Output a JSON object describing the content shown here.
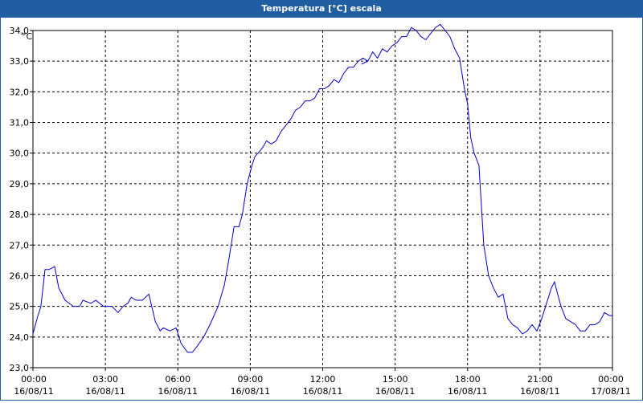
{
  "window": {
    "title": "Temperatura [°C] escala"
  },
  "chart_data": {
    "type": "line",
    "title": "Temperatura [°C] escala",
    "ylabel": "°C",
    "xlabel": "",
    "ylim": [
      23.0,
      34.0
    ],
    "xlim": [
      0,
      24
    ],
    "grid": true,
    "line_color": "#0000c8",
    "y_ticks": [
      "23,0",
      "24,0",
      "25,0",
      "26,0",
      "27,0",
      "28,0",
      "29,0",
      "30,0",
      "31,0",
      "32,0",
      "33,0",
      "34,0"
    ],
    "x_ticks": [
      {
        "time": "00:00",
        "date": "16/08/11"
      },
      {
        "time": "03:00",
        "date": "16/08/11"
      },
      {
        "time": "06:00",
        "date": "16/08/11"
      },
      {
        "time": "09:00",
        "date": "16/08/11"
      },
      {
        "time": "12:00",
        "date": "16/08/11"
      },
      {
        "time": "15:00",
        "date": "16/08/11"
      },
      {
        "time": "18:00",
        "date": "16/08/11"
      },
      {
        "time": "21:00",
        "date": "16/08/11"
      },
      {
        "time": "00:00",
        "date": "17/08/11"
      }
    ],
    "series": [
      {
        "segments": [
          [
            [
              0.0,
              24.1
            ],
            [
              0.17,
              24.6
            ],
            [
              0.33,
              25.0
            ],
            [
              0.5,
              26.2
            ],
            [
              0.67,
              26.2
            ],
            [
              0.9,
              26.3
            ],
            [
              1.07,
              25.6
            ],
            [
              1.33,
              25.2
            ],
            [
              1.67,
              25.0
            ],
            [
              1.93,
              25.0
            ],
            [
              2.07,
              25.2
            ],
            [
              2.4,
              25.1
            ],
            [
              2.6,
              25.2
            ],
            [
              2.93,
              25.0
            ],
            [
              3.07,
              25.0
            ],
            [
              3.27,
              25.0
            ],
            [
              3.53,
              24.8
            ],
            [
              3.73,
              25.0
            ],
            [
              3.93,
              25.1
            ],
            [
              4.07,
              25.3
            ],
            [
              4.27,
              25.2
            ],
            [
              4.53,
              25.2
            ],
            [
              4.8,
              25.4
            ],
            [
              5.07,
              24.5
            ],
            [
              5.27,
              24.2
            ],
            [
              5.4,
              24.3
            ],
            [
              5.67,
              24.2
            ],
            [
              5.93,
              24.3
            ],
            [
              6.13,
              23.8
            ],
            [
              6.4,
              23.5
            ],
            [
              6.6,
              23.5
            ],
            [
              6.8,
              23.7
            ],
            [
              7.07,
              24.0
            ],
            [
              7.33,
              24.4
            ],
            [
              7.67,
              25.0
            ],
            [
              7.93,
              25.7
            ],
            [
              8.13,
              26.6
            ],
            [
              8.33,
              27.6
            ],
            [
              8.53,
              27.6
            ],
            [
              8.67,
              28.0
            ],
            [
              8.87,
              29.0
            ],
            [
              9.07,
              29.6
            ],
            [
              9.2,
              29.9
            ],
            [
              9.33,
              30.0
            ],
            [
              9.53,
              30.2
            ],
            [
              9.67,
              30.4
            ],
            [
              9.87,
              30.3
            ],
            [
              10.07,
              30.4
            ],
            [
              10.27,
              30.7
            ],
            [
              10.47,
              30.9
            ],
            [
              10.67,
              31.1
            ],
            [
              10.87,
              31.4
            ],
            [
              11.07,
              31.5
            ],
            [
              11.27,
              31.7
            ],
            [
              11.47,
              31.7
            ],
            [
              11.67,
              31.8
            ],
            [
              11.87,
              32.1
            ],
            [
              12.07,
              32.1
            ],
            [
              12.27,
              32.2
            ],
            [
              12.47,
              32.4
            ],
            [
              12.67,
              32.3
            ],
            [
              12.87,
              32.6
            ],
            [
              13.07,
              32.8
            ],
            [
              13.27,
              32.8
            ],
            [
              13.47,
              33.0
            ],
            [
              13.67,
              33.1
            ],
            [
              13.87,
              33.0
            ]
          ],
          [
            [
              13.6,
              32.9
            ],
            [
              13.87,
              33.0
            ],
            [
              14.07,
              33.3
            ],
            [
              14.27,
              33.1
            ],
            [
              14.47,
              33.4
            ],
            [
              14.67,
              33.3
            ],
            [
              14.87,
              33.5
            ],
            [
              15.07,
              33.6
            ],
            [
              15.27,
              33.8
            ],
            [
              15.47,
              33.8
            ],
            [
              15.67,
              34.1
            ],
            [
              15.87,
              34.0
            ],
            [
              16.07,
              33.8
            ],
            [
              16.27,
              33.7
            ],
            [
              16.47,
              33.9
            ],
            [
              16.67,
              34.1
            ],
            [
              16.87,
              34.2
            ],
            [
              17.07,
              34.0
            ],
            [
              17.27,
              33.8
            ],
            [
              17.47,
              33.4
            ],
            [
              17.67,
              33.1
            ],
            [
              17.87,
              32.1
            ],
            [
              18.0,
              31.6
            ],
            [
              18.13,
              30.5
            ],
            [
              18.27,
              30.0
            ],
            [
              18.47,
              29.6
            ],
            [
              18.67,
              27.0
            ],
            [
              18.87,
              26.0
            ],
            [
              19.07,
              25.6
            ],
            [
              19.27,
              25.3
            ],
            [
              19.47,
              25.4
            ],
            [
              19.67,
              24.6
            ],
            [
              19.87,
              24.4
            ],
            [
              20.07,
              24.3
            ],
            [
              20.27,
              24.1
            ],
            [
              20.47,
              24.2
            ],
            [
              20.67,
              24.4
            ],
            [
              20.87,
              24.2
            ],
            [
              21.07,
              24.6
            ],
            [
              21.27,
              25.1
            ],
            [
              21.47,
              25.6
            ],
            [
              21.6,
              25.8
            ],
            [
              21.73,
              25.4
            ],
            [
              21.87,
              25.0
            ],
            [
              22.07,
              24.6
            ],
            [
              22.27,
              24.5
            ],
            [
              22.47,
              24.4
            ],
            [
              22.67,
              24.2
            ],
            [
              22.87,
              24.2
            ],
            [
              23.07,
              24.4
            ],
            [
              23.27,
              24.4
            ],
            [
              23.47,
              24.5
            ],
            [
              23.67,
              24.8
            ],
            [
              23.87,
              24.7
            ],
            [
              24.0,
              24.7
            ]
          ]
        ]
      }
    ]
  }
}
